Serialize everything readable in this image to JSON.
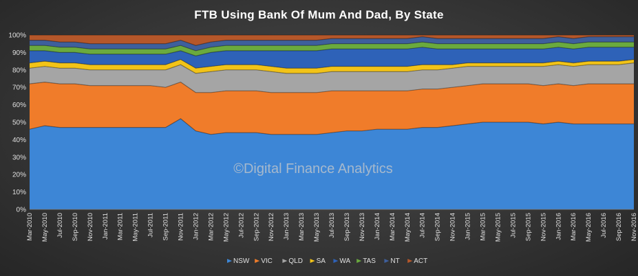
{
  "chart_data": {
    "type": "area",
    "stacked": true,
    "title": "FTB Using Bank Of Mum And Dad, By State",
    "watermark": "©Digital Finance Analytics",
    "ylim": [
      0,
      100
    ],
    "yticks": [
      "0%",
      "10%",
      "20%",
      "30%",
      "40%",
      "50%",
      "60%",
      "70%",
      "80%",
      "90%",
      "100%"
    ],
    "categories": [
      "Mar-2010",
      "May-2010",
      "Jul-2010",
      "Sep-2010",
      "Nov-2010",
      "Jan-2011",
      "Mar-2011",
      "May-2011",
      "Jul-2011",
      "Sep-2011",
      "Nov-2011",
      "Jan-2012",
      "Mar-2012",
      "May-2012",
      "Jul-2012",
      "Sep-2012",
      "Nov-2012",
      "Jan-2013",
      "Mar-2013",
      "May-2013",
      "Jul-2013",
      "Sep-2013",
      "Nov-2013",
      "Jan-2014",
      "Mar-2014",
      "May-2014",
      "Jul-2014",
      "Sep-2014",
      "Nov-2014",
      "Jan-2015",
      "Mar-2015",
      "May-2015",
      "Jul-2015",
      "Sep-2015",
      "Nov-2015",
      "Jan-2016",
      "Mar-2016",
      "May-2016",
      "Jul-2016",
      "Sep-2016",
      "Nov-2016"
    ],
    "legend_position": "bottom",
    "series": [
      {
        "name": "NSW",
        "color": "#3d86d6",
        "values": [
          46,
          48,
          47,
          47,
          47,
          47,
          47,
          47,
          47,
          47,
          52,
          45,
          43,
          44,
          44,
          44,
          43,
          43,
          43,
          43,
          44,
          45,
          45,
          46,
          46,
          46,
          47,
          47,
          48,
          49,
          50,
          50,
          50,
          50,
          49,
          50,
          49,
          49,
          49,
          49,
          49
        ]
      },
      {
        "name": "VIC",
        "color": "#f07c2a",
        "values": [
          26,
          25,
          25,
          25,
          24,
          24,
          24,
          24,
          24,
          23,
          21,
          22,
          24,
          24,
          24,
          24,
          24,
          24,
          24,
          24,
          24,
          23,
          23,
          22,
          22,
          22,
          22,
          22,
          22,
          22,
          22,
          22,
          22,
          22,
          22,
          22,
          22,
          23,
          23,
          23,
          23
        ]
      },
      {
        "name": "QLD",
        "color": "#a5a5a5",
        "values": [
          9,
          9,
          9,
          9,
          9,
          9,
          9,
          9,
          9,
          10,
          10,
          11,
          12,
          12,
          12,
          12,
          12,
          11,
          11,
          11,
          11,
          11,
          11,
          11,
          11,
          11,
          11,
          11,
          11,
          11,
          10,
          10,
          10,
          10,
          11,
          11,
          11,
          11,
          11,
          11,
          12
        ]
      },
      {
        "name": "SA",
        "color": "#f2c318",
        "values": [
          3,
          3,
          3,
          3,
          3,
          3,
          3,
          3,
          3,
          3,
          3,
          3,
          3,
          3,
          3,
          3,
          3,
          3,
          3,
          3,
          3,
          3,
          3,
          3,
          3,
          3,
          3,
          3,
          2,
          2,
          2,
          2,
          2,
          2,
          2,
          2,
          2,
          2,
          2,
          2,
          2
        ]
      },
      {
        "name": "WA",
        "color": "#2e62b8",
        "values": [
          7,
          6,
          6,
          6,
          6,
          6,
          6,
          6,
          6,
          6,
          5,
          7,
          8,
          8,
          8,
          8,
          9,
          10,
          10,
          10,
          10,
          10,
          10,
          10,
          10,
          10,
          10,
          9,
          9,
          8,
          8,
          8,
          8,
          8,
          8,
          8,
          8,
          8,
          8,
          8,
          7
        ]
      },
      {
        "name": "TAS",
        "color": "#6aaa3e",
        "values": [
          3,
          3,
          3,
          3,
          3,
          3,
          3,
          3,
          3,
          3,
          3,
          3,
          3,
          3,
          3,
          3,
          3,
          3,
          3,
          3,
          3,
          3,
          3,
          3,
          3,
          3,
          3,
          3,
          3,
          3,
          3,
          3,
          3,
          3,
          3,
          3,
          3,
          3,
          3,
          3,
          3
        ]
      },
      {
        "name": "NT",
        "color": "#3e5f9c",
        "values": [
          3,
          3,
          3,
          3,
          3,
          3,
          3,
          3,
          3,
          3,
          3,
          3,
          3,
          3,
          3,
          3,
          3,
          3,
          3,
          3,
          3,
          3,
          3,
          3,
          3,
          3,
          3,
          3,
          3,
          3,
          3,
          3,
          3,
          3,
          3,
          3,
          3,
          3,
          3,
          3,
          3
        ]
      },
      {
        "name": "ACT",
        "color": "#b5572a",
        "values": [
          3,
          3,
          4,
          4,
          5,
          5,
          5,
          5,
          5,
          5,
          3,
          6,
          4,
          3,
          3,
          3,
          3,
          3,
          3,
          3,
          2,
          2,
          2,
          2,
          2,
          2,
          1,
          2,
          2,
          2,
          2,
          2,
          2,
          2,
          2,
          1,
          2,
          1,
          1,
          1,
          1
        ]
      }
    ]
  }
}
